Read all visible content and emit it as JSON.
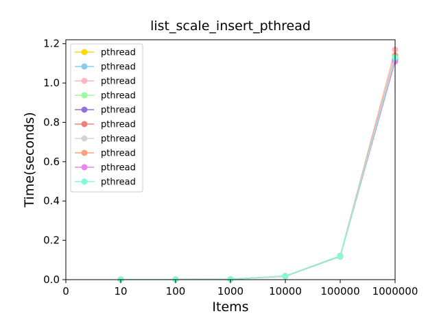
{
  "chart_data": {
    "type": "line",
    "title": "list_scale_insert_pthread",
    "xlabel": "Items",
    "ylabel": "Time(seconds)",
    "x_tick_labels": [
      "0",
      "10",
      "100",
      "1000",
      "10000",
      "100000",
      "1000000"
    ],
    "y_ticks": [
      0.0,
      0.2,
      0.4,
      0.6,
      0.8,
      1.0,
      1.2
    ],
    "y_tick_labels": [
      "0.0",
      "0.2",
      "0.4",
      "0.6",
      "0.8",
      "1.0",
      "1.2"
    ],
    "ylim": [
      0,
      1.22
    ],
    "categories": [
      "10",
      "100",
      "1000",
      "10000",
      "100000",
      "1000000"
    ],
    "legend_position": "top-left",
    "grid": false,
    "series": [
      {
        "name": "pthread",
        "color": "#FFD700",
        "values": [
          0.001,
          0.001,
          0.002,
          0.018,
          0.12,
          1.14
        ]
      },
      {
        "name": "pthread",
        "color": "#87CEEB",
        "values": [
          0.001,
          0.001,
          0.002,
          0.017,
          0.118,
          1.12
        ]
      },
      {
        "name": "pthread",
        "color": "#FFB6C1",
        "values": [
          0.001,
          0.001,
          0.002,
          0.019,
          0.121,
          1.17
        ]
      },
      {
        "name": "pthread",
        "color": "#98FB98",
        "values": [
          0.001,
          0.001,
          0.002,
          0.018,
          0.12,
          1.13
        ]
      },
      {
        "name": "pthread",
        "color": "#9370DB",
        "values": [
          0.001,
          0.001,
          0.002,
          0.018,
          0.119,
          1.12
        ]
      },
      {
        "name": "pthread",
        "color": "#F08080",
        "values": [
          0.001,
          0.001,
          0.002,
          0.018,
          0.12,
          1.14
        ]
      },
      {
        "name": "pthread",
        "color": "#D3D3D3",
        "values": [
          0.001,
          0.001,
          0.002,
          0.018,
          0.12,
          1.13
        ]
      },
      {
        "name": "pthread",
        "color": "#FFA07A",
        "values": [
          0.001,
          0.001,
          0.002,
          0.018,
          0.121,
          1.14
        ]
      },
      {
        "name": "pthread",
        "color": "#EE82EE",
        "values": [
          0.001,
          0.001,
          0.002,
          0.017,
          0.119,
          1.11
        ]
      },
      {
        "name": "pthread",
        "color": "#7FFFD4",
        "values": [
          0.001,
          0.001,
          0.002,
          0.018,
          0.12,
          1.13
        ]
      }
    ]
  }
}
